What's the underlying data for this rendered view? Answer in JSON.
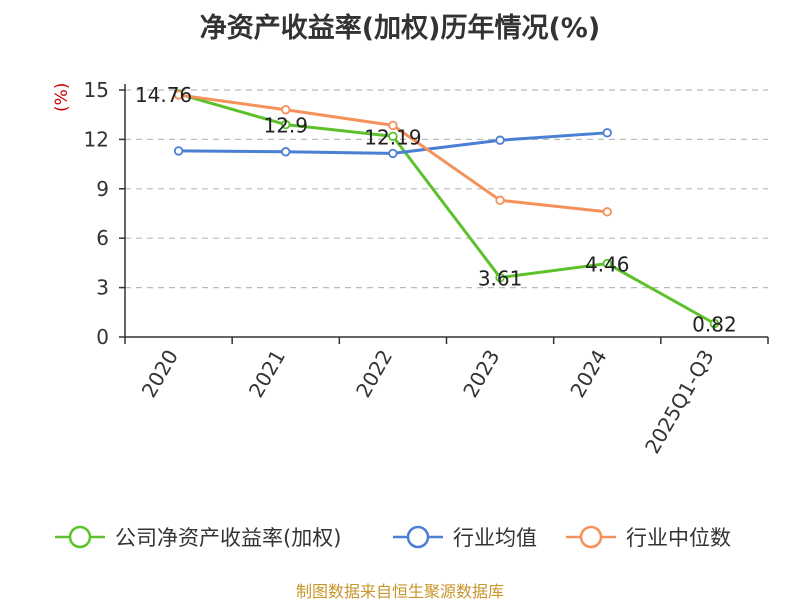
{
  "chart_data": {
    "type": "line",
    "title": "净资产收益率(加权)历年情况(%)",
    "ylabel": "(%)",
    "xlabel": "",
    "ylim": [
      0,
      15
    ],
    "yticks": [
      0,
      3,
      6,
      9,
      12,
      15
    ],
    "grid": true,
    "legend_position": "bottom",
    "categories": [
      "2020",
      "2021",
      "2022",
      "2023",
      "2024",
      "2025Q1-Q3"
    ],
    "series": [
      {
        "name": "公司净资产收益率(加权)",
        "color": "#5cc12a",
        "values": [
          14.76,
          12.9,
          12.19,
          3.61,
          4.46,
          0.82
        ],
        "labels": [
          "14.76",
          "12.9",
          "12.19",
          "3.61",
          "4.46",
          "0.82"
        ]
      },
      {
        "name": "行业均值",
        "color": "#4a7fd4",
        "values": [
          11.3,
          11.25,
          11.15,
          11.95,
          12.4,
          null
        ]
      },
      {
        "name": "行业中位数",
        "color": "#f5915a",
        "values": [
          14.7,
          13.8,
          12.85,
          8.3,
          7.6,
          null
        ]
      }
    ],
    "source": "制图数据来自恒生聚源数据库"
  }
}
